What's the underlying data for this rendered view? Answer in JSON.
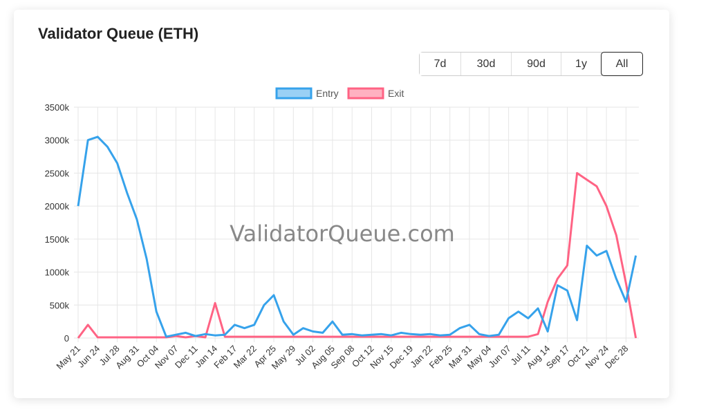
{
  "title": "Validator Queue (ETH)",
  "range_buttons": [
    {
      "label": "7d",
      "active": false
    },
    {
      "label": "30d",
      "active": false
    },
    {
      "label": "90d",
      "active": false
    },
    {
      "label": "1y",
      "active": false
    },
    {
      "label": "All",
      "active": true
    }
  ],
  "watermark": "ValidatorQueue.com",
  "colors": {
    "entry": "#36a2eb",
    "exit": "#ff6384"
  },
  "chart_data": {
    "type": "line",
    "title": "",
    "xlabel": "",
    "ylabel": "",
    "grid": true,
    "legend_placement": "top",
    "ylim": [
      0,
      3500
    ],
    "y_unit_suffix": "k",
    "y_ticks": [
      "0",
      "500k",
      "1000k",
      "1500k",
      "2000k",
      "2500k",
      "3000k",
      "3500k"
    ],
    "x_tick_labels": [
      "May 21",
      "Jun 24",
      "Jul 28",
      "Aug 31",
      "Oct 04",
      "Nov 07",
      "Dec 11",
      "Jan 14",
      "Feb 17",
      "Mar 22",
      "Apr 25",
      "May 29",
      "Jul 02",
      "Aug 05",
      "Sep 08",
      "Oct 12",
      "Nov 15",
      "Dec 19",
      "Jan 22",
      "Feb 25",
      "Mar 31",
      "May 04",
      "Jun 07",
      "Jul 11",
      "Aug 14",
      "Sep 17",
      "Oct 21",
      "Nov 24",
      "Dec 28"
    ],
    "samples_per_tick_interval": 2,
    "series": [
      {
        "name": "Entry",
        "color": "#36a2eb",
        "values": [
          2000,
          3000,
          3050,
          2900,
          2650,
          2200,
          1800,
          1200,
          400,
          20,
          50,
          80,
          30,
          60,
          40,
          50,
          200,
          150,
          200,
          500,
          650,
          250,
          50,
          150,
          100,
          80,
          250,
          50,
          60,
          40,
          50,
          60,
          40,
          80,
          60,
          50,
          60,
          40,
          50,
          150,
          200,
          60,
          30,
          50,
          300,
          400,
          300,
          450,
          100,
          800,
          720,
          270,
          1400,
          1250,
          1320,
          900,
          550,
          1250
        ]
      },
      {
        "name": "Exit",
        "color": "#ff6384",
        "values": [
          0,
          200,
          10,
          10,
          10,
          10,
          10,
          10,
          10,
          10,
          30,
          10,
          30,
          10,
          530,
          20,
          20,
          20,
          20,
          20,
          20,
          20,
          20,
          20,
          20,
          20,
          20,
          20,
          20,
          20,
          20,
          20,
          20,
          20,
          20,
          20,
          20,
          20,
          20,
          20,
          20,
          20,
          20,
          20,
          20,
          20,
          20,
          60,
          550,
          900,
          1100,
          2500,
          2400,
          2300,
          2000,
          1560,
          830,
          0
        ]
      }
    ]
  }
}
